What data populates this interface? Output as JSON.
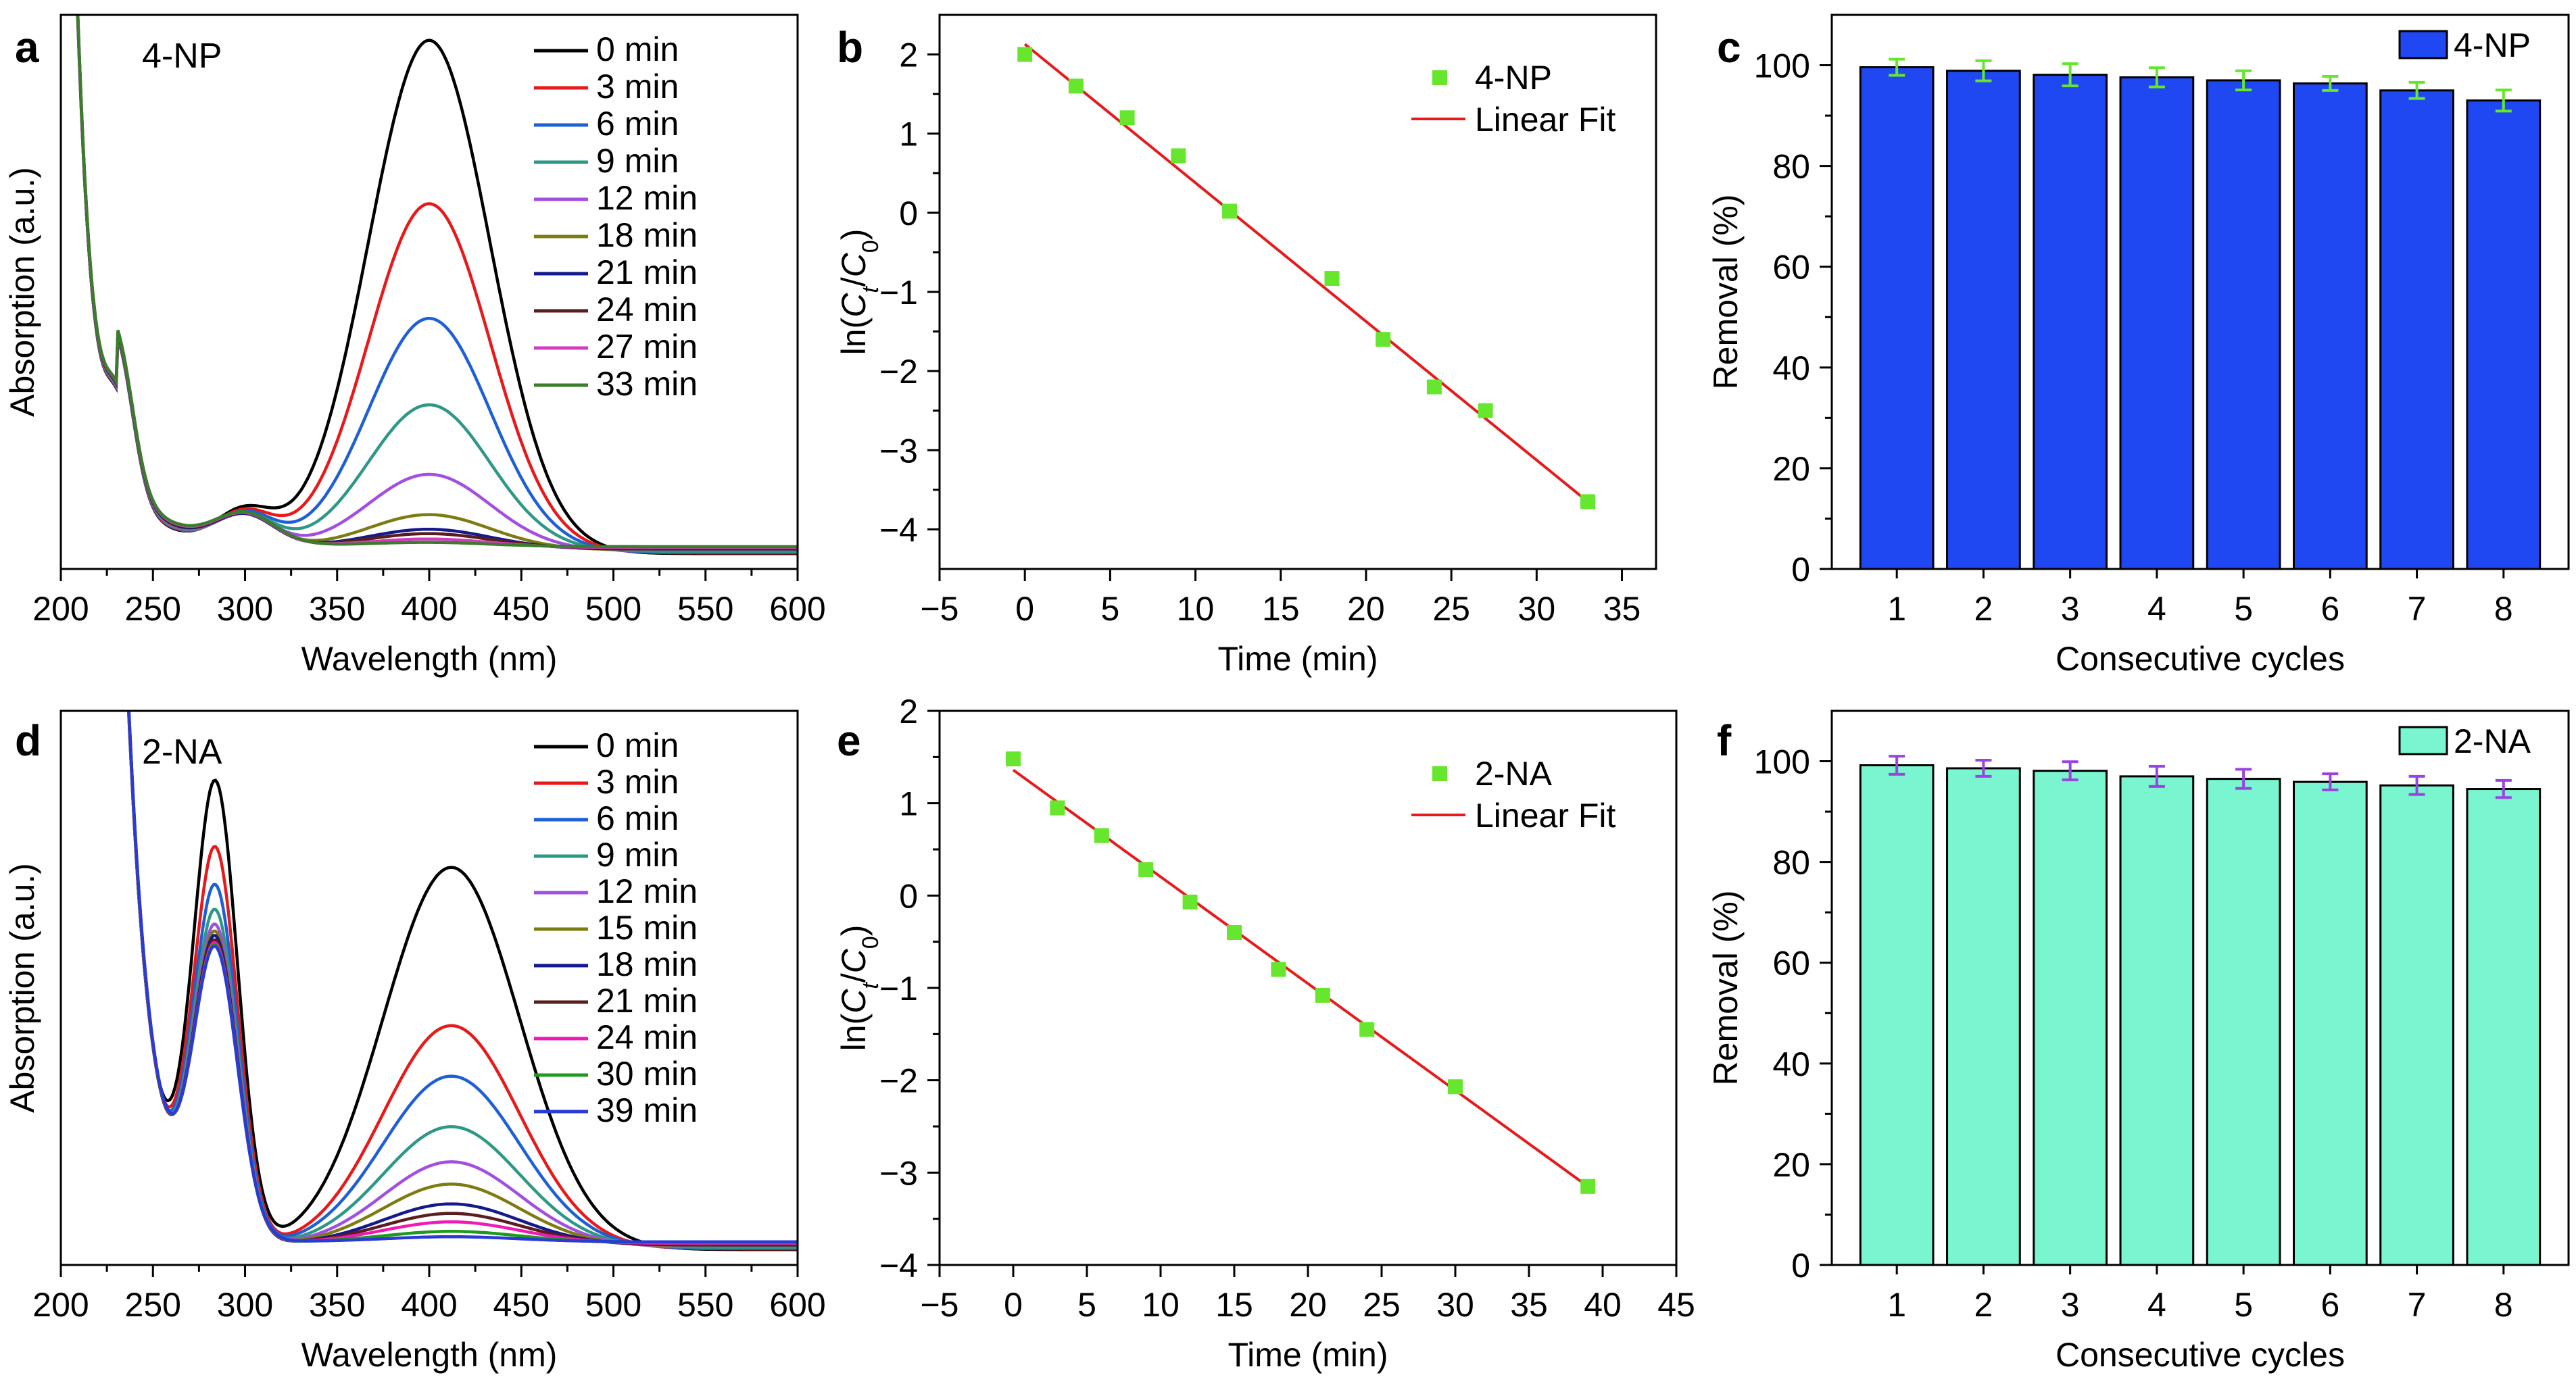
{
  "chart_data": [
    {
      "id": "a",
      "panel_label": "a",
      "type": "line",
      "title": "4-NP",
      "xlabel": "Wavelength (nm)",
      "ylabel": "Absorption (a.u.)",
      "xlim": [
        200,
        600
      ],
      "ylim": [
        0,
        1.08
      ],
      "xticks": [
        200,
        250,
        300,
        350,
        400,
        450,
        500,
        550,
        600
      ],
      "show_yticks": false,
      "peak_model": {
        "band": {
          "center": 400,
          "width": 33
        },
        "shoulder": {
          "center": 300,
          "width": 16
        },
        "uv": {
          "center": 232,
          "width": 8
        }
      },
      "series": [
        {
          "name": "0 min",
          "color": "#000000",
          "band_height": 1.0,
          "shoulder_height": 0.072
        },
        {
          "name": "3 min",
          "color": "#e8191a",
          "band_height": 0.68,
          "shoulder_height": 0.068
        },
        {
          "name": "6 min",
          "color": "#1e5fd6",
          "band_height": 0.455,
          "shoulder_height": 0.065
        },
        {
          "name": "9 min",
          "color": "#2e9886",
          "band_height": 0.285,
          "shoulder_height": 0.062
        },
        {
          "name": "12 min",
          "color": "#a24ee0",
          "band_height": 0.148,
          "shoulder_height": 0.06
        },
        {
          "name": "18 min",
          "color": "#7c7c12",
          "band_height": 0.068,
          "shoulder_height": 0.059
        },
        {
          "name": "21 min",
          "color": "#141a8c",
          "band_height": 0.038,
          "shoulder_height": 0.058
        },
        {
          "name": "24 min",
          "color": "#5a1d1d",
          "band_height": 0.028,
          "shoulder_height": 0.058
        },
        {
          "name": "27 min",
          "color": "#d43cc0",
          "band_height": 0.016,
          "shoulder_height": 0.057
        },
        {
          "name": "33 min",
          "color": "#3a7d2a",
          "band_height": 0.008,
          "shoulder_height": 0.057
        }
      ]
    },
    {
      "id": "b",
      "panel_label": "b",
      "type": "scatter",
      "xlabel": "Time (min)",
      "ylabel": "ln(Ct/C0)",
      "xlim": [
        -5,
        37
      ],
      "ylim": [
        -4.5,
        2.5
      ],
      "xticks": [
        -5,
        0,
        5,
        10,
        15,
        20,
        25,
        30,
        35
      ],
      "yticks": [
        -4,
        -3,
        -2,
        -1,
        0,
        1,
        2
      ],
      "series": [
        {
          "name": "4-NP",
          "color": "#66e62c",
          "x": [
            0,
            3,
            6,
            9,
            12,
            18,
            21,
            24,
            27,
            33
          ],
          "y": [
            2.0,
            1.6,
            1.2,
            0.72,
            0.02,
            -0.83,
            -1.6,
            -2.2,
            -2.5,
            -3.65
          ]
        }
      ],
      "fit": {
        "name": "Linear Fit",
        "color": "#e8191a",
        "x": [
          0,
          33
        ],
        "y": [
          2.13,
          -3.65
        ]
      }
    },
    {
      "id": "c",
      "panel_label": "c",
      "type": "bar",
      "xlabel": "Consecutive cycles",
      "ylabel": "Removal (%)",
      "ylim": [
        0,
        110
      ],
      "yticks": [
        0,
        20,
        40,
        60,
        80,
        100
      ],
      "categories": [
        "1",
        "2",
        "3",
        "4",
        "5",
        "6",
        "7",
        "8"
      ],
      "series": [
        {
          "name": "4-NP",
          "color": "#1f48f2",
          "error_color": "#66e62c",
          "values": [
            99.6,
            98.9,
            98.1,
            97.6,
            97.0,
            96.4,
            95.0,
            93.0
          ],
          "errors": [
            1.6,
            2.0,
            2.2,
            1.9,
            1.9,
            1.4,
            1.6,
            2.1
          ]
        }
      ]
    },
    {
      "id": "d",
      "panel_label": "d",
      "type": "line",
      "title": "2-NA",
      "xlabel": "Wavelength (nm)",
      "ylabel": "Absorption (a.u.)",
      "xlim": [
        200,
        600
      ],
      "ylim": [
        0,
        1.08
      ],
      "xticks": [
        200,
        250,
        300,
        350,
        400,
        450,
        500,
        550,
        600
      ],
      "show_yticks": false,
      "peak_model": {
        "band": {
          "center": 412,
          "width": 37
        },
        "shoulder": {
          "center": 284,
          "width": 12
        },
        "uv": {
          "center": 232,
          "width": 11
        }
      },
      "series": [
        {
          "name": "0 min",
          "color": "#000000",
          "band_height": 0.745,
          "shoulder_height": 0.885
        },
        {
          "name": "3 min",
          "color": "#e8191a",
          "band_height": 0.435,
          "shoulder_height": 0.755
        },
        {
          "name": "6 min",
          "color": "#1e5fd6",
          "band_height": 0.335,
          "shoulder_height": 0.68
        },
        {
          "name": "9 min",
          "color": "#2e9886",
          "band_height": 0.235,
          "shoulder_height": 0.63
        },
        {
          "name": "12 min",
          "color": "#a24ee0",
          "band_height": 0.165,
          "shoulder_height": 0.6
        },
        {
          "name": "15 min",
          "color": "#7c7c12",
          "band_height": 0.12,
          "shoulder_height": 0.585
        },
        {
          "name": "18 min",
          "color": "#141a8c",
          "band_height": 0.08,
          "shoulder_height": 0.575
        },
        {
          "name": "21 min",
          "color": "#5a1d1d",
          "band_height": 0.06,
          "shoulder_height": 0.565
        },
        {
          "name": "24 min",
          "color": "#f019b4",
          "band_height": 0.042,
          "shoulder_height": 0.558
        },
        {
          "name": "30 min",
          "color": "#1f9a1f",
          "band_height": 0.022,
          "shoulder_height": 0.552
        },
        {
          "name": "39 min",
          "color": "#2a3ad6",
          "band_height": 0.01,
          "shoulder_height": 0.548
        }
      ]
    },
    {
      "id": "e",
      "panel_label": "e",
      "type": "scatter",
      "xlabel": "Time (min)",
      "ylabel": "ln(Ct/C0)",
      "xlim": [
        -5,
        45
      ],
      "ylim": [
        -4,
        2
      ],
      "xticks": [
        -5,
        0,
        5,
        10,
        15,
        20,
        25,
        30,
        35,
        40,
        45
      ],
      "yticks": [
        -4,
        -3,
        -2,
        -1,
        0,
        1,
        2
      ],
      "series": [
        {
          "name": "2-NA",
          "color": "#66e62c",
          "x": [
            0,
            3,
            6,
            9,
            12,
            15,
            18,
            21,
            24,
            30,
            39
          ],
          "y": [
            1.48,
            0.95,
            0.65,
            0.28,
            -0.07,
            -0.4,
            -0.8,
            -1.08,
            -1.45,
            -2.07,
            -3.15
          ]
        }
      ],
      "fit": {
        "name": "Linear Fit",
        "color": "#e8191a",
        "x": [
          0,
          39
        ],
        "y": [
          1.36,
          -3.15
        ]
      }
    },
    {
      "id": "f",
      "panel_label": "f",
      "type": "bar",
      "xlabel": "Consecutive cycles",
      "ylabel": "Removal (%)",
      "ylim": [
        0,
        110
      ],
      "yticks": [
        0,
        20,
        40,
        60,
        80,
        100
      ],
      "categories": [
        "1",
        "2",
        "3",
        "4",
        "5",
        "6",
        "7",
        "8"
      ],
      "series": [
        {
          "name": "2-NA",
          "color": "#79f5cf",
          "error_color": "#9a43e0",
          "values": [
            99.2,
            98.6,
            98.1,
            97.0,
            96.5,
            95.9,
            95.2,
            94.5
          ],
          "errors": [
            1.8,
            1.6,
            1.8,
            2.0,
            1.9,
            1.6,
            1.8,
            1.7
          ]
        }
      ]
    }
  ]
}
